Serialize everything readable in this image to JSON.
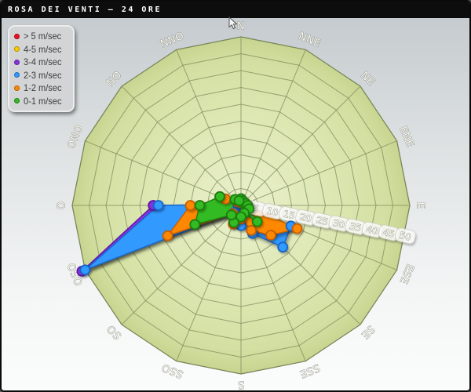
{
  "window": {
    "title": "ROSA DEI VENTI – 24 ORE"
  },
  "legend": {
    "items": [
      {
        "label": "> 5 m/sec",
        "color": "#ee1122",
        "stroke": "#9b0011"
      },
      {
        "label": "4-5 m/sec",
        "color": "#ffcc00",
        "stroke": "#bb8e00"
      },
      {
        "label": "3-4 m/sec",
        "color": "#8833dd",
        "stroke": "#5a16a8"
      },
      {
        "label": "2-3 m/sec",
        "color": "#3399ff",
        "stroke": "#1565c8"
      },
      {
        "label": "1-2 m/sec",
        "color": "#ff8800",
        "stroke": "#c85f00"
      },
      {
        "label": "0-1 m/sec",
        "color": "#33bb22",
        "stroke": "#1d7d10"
      }
    ]
  },
  "chart_data": {
    "type": "area",
    "subtype": "wind-rose-polar-16",
    "title": "Rosa dei Venti – 24 ore",
    "directions": [
      "N",
      "NNE",
      "NE",
      "ENE",
      "E",
      "ESE",
      "SE",
      "SSE",
      "S",
      "SSO",
      "SO",
      "OSO",
      "O",
      "ONO",
      "NO",
      "NNO"
    ],
    "ring_ticks": [
      5,
      10,
      15,
      20,
      25,
      30,
      35,
      40,
      45,
      50
    ],
    "rmax": 50,
    "grid": true,
    "legend_position": "top-left",
    "series": [
      {
        "name": "> 5 m/sec",
        "color": "#ee1122",
        "stroke": "#9b0011",
        "values": [
          0,
          0,
          0,
          0,
          0,
          0,
          0,
          0,
          0,
          0,
          0,
          0,
          0,
          0,
          0,
          0
        ]
      },
      {
        "name": "4-5 m/sec",
        "color": "#ffcc00",
        "stroke": "#bb8e00",
        "values": [
          0,
          0,
          0,
          0,
          0,
          0,
          0,
          0,
          0,
          0,
          0,
          0,
          0,
          0,
          0,
          0
        ]
      },
      {
        "name": "3-4 m/sec",
        "color": "#8833dd",
        "stroke": "#5a16a8",
        "values": [
          0,
          0,
          0,
          0,
          0,
          0,
          0,
          0,
          0,
          0,
          0,
          51,
          26,
          0,
          0,
          0
        ]
      },
      {
        "name": "2-3 m/sec",
        "color": "#3399ff",
        "stroke": "#1565c8",
        "values": [
          0.5,
          0.5,
          0.5,
          0.5,
          1,
          16,
          17.5,
          9,
          6,
          5.5,
          3,
          50,
          24.5,
          1,
          0.5,
          0.5
        ]
      },
      {
        "name": "1-2 m/sec",
        "color": "#ff8800",
        "stroke": "#c85f00",
        "values": [
          1,
          1,
          1,
          1,
          2,
          18,
          12.5,
          8,
          4,
          6,
          3.5,
          23.5,
          15,
          5,
          1.5,
          1
        ]
      },
      {
        "name": "0-1 m/sec",
        "color": "#33bb22",
        "stroke": "#1d7d10",
        "values": [
          2,
          1.5,
          1,
          1.5,
          2,
          2.6,
          6.8,
          2.5,
          3.4,
          5.5,
          4,
          14.8,
          12.2,
          6.8,
          2.5,
          1.5
        ]
      }
    ]
  }
}
